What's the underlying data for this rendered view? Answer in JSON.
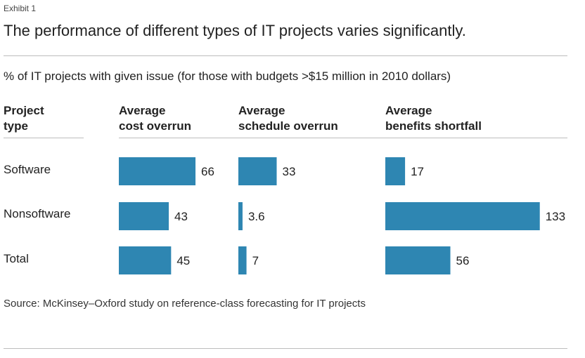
{
  "exhibit_label": "Exhibit 1",
  "title": "The performance of different types of IT projects varies significantly.",
  "subtitle": "% of IT projects with given issue (for those with budgets >$15 million in 2010 dollars)",
  "column_headers": {
    "project_type": [
      "Project",
      "type"
    ],
    "cost": [
      "Average",
      "cost overrun"
    ],
    "schedule": [
      "Average",
      "schedule overrun"
    ],
    "benefits": [
      "Average",
      "benefits shortfall"
    ]
  },
  "source": "Source: McKinsey–Oxford study on reference-class forecasting for IT projects",
  "colors": {
    "bar": "#2e86b2",
    "rule": "#bdbdbd"
  },
  "chart_data": {
    "type": "bar",
    "orientation": "horizontal",
    "title": "The performance of different types of IT projects varies significantly.",
    "ylabel": "% of IT projects with given issue (for those with budgets >$15 million in 2010 dollars)",
    "categories": [
      "Software",
      "Nonsoftware",
      "Total"
    ],
    "series": [
      {
        "name": "Average cost overrun",
        "values": [
          66,
          43,
          45
        ],
        "labels": [
          "66",
          "43",
          "45"
        ]
      },
      {
        "name": "Average schedule overrun",
        "values": [
          33,
          3.6,
          7
        ],
        "labels": [
          "33",
          "3.6",
          "7"
        ]
      },
      {
        "name": "Average benefits shortfall",
        "values": [
          17,
          133,
          56
        ],
        "labels": [
          "17",
          "133",
          "56"
        ]
      }
    ]
  }
}
